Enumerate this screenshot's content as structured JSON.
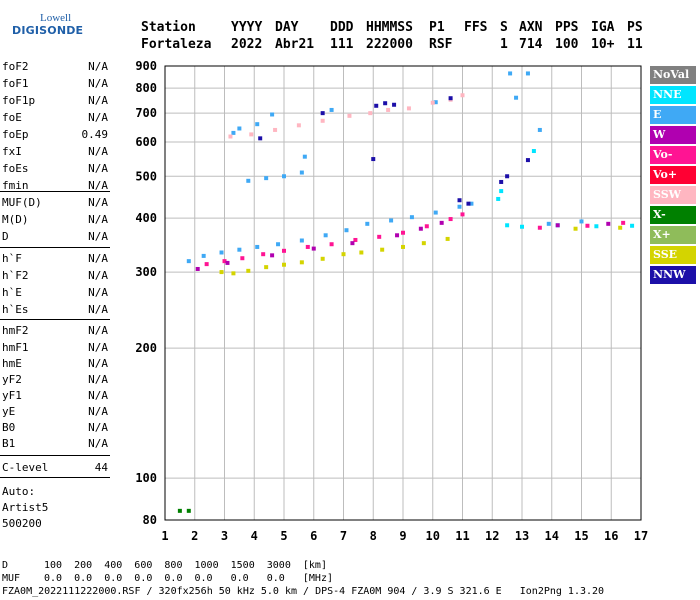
{
  "logo": {
    "line1": "Lowell",
    "line2": "DIGISONDE"
  },
  "header": {
    "labels": [
      "Station",
      "YYYY",
      "DAY",
      "DDD",
      "HHMMSS",
      "P1",
      "FFS",
      "S",
      "AXN",
      "PPS",
      "IGA",
      "PS"
    ],
    "values": [
      "Fortaleza",
      "2022",
      "Abr21",
      "111",
      "222000",
      "RSF",
      "",
      "1",
      "714",
      "100",
      "10+",
      "11"
    ]
  },
  "params": [
    {
      "name": "foF2",
      "value": "N/A"
    },
    {
      "name": "foF1",
      "value": "N/A"
    },
    {
      "name": "foF1p",
      "value": "N/A"
    },
    {
      "name": "foE",
      "value": "N/A"
    },
    {
      "name": "foEp",
      "value": "0.49"
    },
    {
      "name": "fxI",
      "value": "N/A"
    },
    {
      "name": "foEs",
      "value": "N/A"
    },
    {
      "name": "fmin",
      "value": "N/A"
    },
    {
      "name": "MUF(D)",
      "value": "N/A"
    },
    {
      "name": "M(D)",
      "value": "N/A"
    },
    {
      "name": "D",
      "value": "N/A"
    },
    {
      "name": "h`F",
      "value": "N/A"
    },
    {
      "name": "h`F2",
      "value": "N/A"
    },
    {
      "name": "h`E",
      "value": "N/A"
    },
    {
      "name": "h`Es",
      "value": "N/A"
    },
    {
      "name": "hmF2",
      "value": "N/A"
    },
    {
      "name": "hmF1",
      "value": "N/A"
    },
    {
      "name": "hmE",
      "value": "N/A"
    },
    {
      "name": "yF2",
      "value": "N/A"
    },
    {
      "name": "yF1",
      "value": "N/A"
    },
    {
      "name": "yE",
      "value": "N/A"
    },
    {
      "name": "B0",
      "value": "N/A"
    },
    {
      "name": "B1",
      "value": "N/A"
    },
    {
      "name": "C-level",
      "value": "44"
    }
  ],
  "auto": {
    "line1": "Auto:",
    "line2": "Artist5",
    "line3": "500200"
  },
  "legend": [
    {
      "label": "NoVal",
      "color": "#808080"
    },
    {
      "label": "NNE",
      "color": "#00e5ff"
    },
    {
      "label": "E",
      "color": "#3fa9f5"
    },
    {
      "label": "W",
      "color": "#b000b0"
    },
    {
      "label": "Vo-",
      "color": "#ff1493"
    },
    {
      "label": "Vo+",
      "color": "#ff0033"
    },
    {
      "label": "SSW",
      "color": "#ffb6c1"
    },
    {
      "label": "X-",
      "color": "#008000"
    },
    {
      "label": "X+",
      "color": "#8fbc5a"
    },
    {
      "label": "SSE",
      "color": "#d4d400"
    },
    {
      "label": "NNW",
      "color": "#1c0fa8"
    }
  ],
  "footer": {
    "d_label": "D",
    "d_values": "100  200  400  600  800  1000  1500  3000  [km]",
    "muf_label": "MUF",
    "muf_values": "0.0  0.0  0.0  0.0  0.0  0.0   0.0   0.0   [MHz]",
    "info_line": "FZA0M_2022111222000.RSF / 320fx256h 50 kHz 5.0 km / DPS-4 FZA0M 904 / 3.9 S 321.6 E   Ion2Png 1.3.20"
  },
  "chart_data": {
    "type": "scatter",
    "title": "",
    "xlabel": "",
    "ylabel": "",
    "xlim": [
      1,
      17
    ],
    "ylim": [
      80,
      900
    ],
    "y_scale": "log",
    "grid": true,
    "x_ticks": [
      1,
      2,
      3,
      4,
      5,
      6,
      7,
      8,
      9,
      10,
      11,
      12,
      13,
      14,
      15,
      16,
      17
    ],
    "y_ticks": [
      80,
      100,
      200,
      300,
      400,
      500,
      600,
      700,
      800,
      900
    ],
    "y_tick_labels": [
      "80",
      "100",
      "200",
      "300",
      "400",
      "500",
      "600",
      "700",
      "800",
      "900"
    ],
    "series": [
      {
        "name": "SSE",
        "points": [
          [
            2.9,
            300
          ],
          [
            3.3,
            298
          ],
          [
            3.8,
            302
          ],
          [
            4.4,
            308
          ],
          [
            5.0,
            312
          ],
          [
            5.6,
            316
          ],
          [
            6.3,
            322
          ],
          [
            7.0,
            330
          ],
          [
            7.6,
            333
          ],
          [
            8.3,
            338
          ],
          [
            9.0,
            343
          ],
          [
            9.7,
            350
          ],
          [
            10.5,
            358
          ],
          [
            14.8,
            378
          ],
          [
            16.3,
            380
          ]
        ]
      },
      {
        "name": "Vo-",
        "points": [
          [
            2.4,
            313
          ],
          [
            3.0,
            318
          ],
          [
            3.6,
            323
          ],
          [
            4.3,
            330
          ],
          [
            5.0,
            336
          ],
          [
            5.8,
            343
          ],
          [
            6.6,
            348
          ],
          [
            7.4,
            356
          ],
          [
            8.2,
            362
          ],
          [
            9.0,
            370
          ],
          [
            9.8,
            383
          ],
          [
            10.6,
            398
          ],
          [
            11.0,
            408
          ],
          [
            13.6,
            380
          ],
          [
            15.2,
            384
          ],
          [
            16.4,
            390
          ]
        ]
      },
      {
        "name": "E",
        "points": [
          [
            1.8,
            318
          ],
          [
            2.3,
            327
          ],
          [
            2.9,
            333
          ],
          [
            3.5,
            338
          ],
          [
            4.1,
            343
          ],
          [
            4.8,
            348
          ],
          [
            5.6,
            355
          ],
          [
            6.4,
            365
          ],
          [
            7.1,
            375
          ],
          [
            7.8,
            388
          ],
          [
            8.6,
            395
          ],
          [
            9.3,
            402
          ],
          [
            10.1,
            412
          ],
          [
            10.9,
            425
          ],
          [
            11.3,
            432
          ],
          [
            13.9,
            388
          ],
          [
            15.0,
            393
          ],
          [
            3.8,
            488
          ],
          [
            4.4,
            495
          ],
          [
            5.0,
            500
          ],
          [
            5.6,
            510
          ],
          [
            3.3,
            630
          ],
          [
            3.5,
            645
          ],
          [
            4.1,
            660
          ],
          [
            4.6,
            695
          ],
          [
            5.7,
            555
          ],
          [
            6.6,
            712
          ],
          [
            10.1,
            742
          ],
          [
            12.8,
            760
          ],
          [
            13.6,
            640
          ],
          [
            12.6,
            865
          ],
          [
            13.2,
            865
          ]
        ]
      },
      {
        "name": "SSW",
        "points": [
          [
            3.2,
            618
          ],
          [
            3.9,
            625
          ],
          [
            4.7,
            640
          ],
          [
            5.5,
            656
          ],
          [
            6.3,
            672
          ],
          [
            7.2,
            690
          ],
          [
            7.9,
            700
          ],
          [
            8.5,
            712
          ],
          [
            9.2,
            718
          ],
          [
            10.0,
            740
          ],
          [
            10.6,
            752
          ],
          [
            11.0,
            770
          ]
        ]
      },
      {
        "name": "NNW",
        "points": [
          [
            4.2,
            612
          ],
          [
            6.3,
            700
          ],
          [
            8.1,
            728
          ],
          [
            8.4,
            738
          ],
          [
            8.7,
            732
          ],
          [
            10.6,
            758
          ],
          [
            8.0,
            548
          ],
          [
            12.3,
            485
          ],
          [
            12.5,
            500
          ],
          [
            13.2,
            545
          ],
          [
            10.9,
            440
          ],
          [
            11.2,
            432
          ]
        ]
      },
      {
        "name": "NNE",
        "points": [
          [
            12.5,
            385
          ],
          [
            13.0,
            382
          ],
          [
            14.2,
            385
          ],
          [
            15.5,
            383
          ],
          [
            16.7,
            384
          ],
          [
            12.3,
            462
          ],
          [
            12.2,
            443
          ],
          [
            13.4,
            572
          ]
        ]
      },
      {
        "name": "W",
        "points": [
          [
            2.1,
            305
          ],
          [
            3.1,
            315
          ],
          [
            4.6,
            328
          ],
          [
            6.0,
            340
          ],
          [
            7.3,
            350
          ],
          [
            8.8,
            365
          ],
          [
            9.6,
            378
          ],
          [
            10.3,
            390
          ],
          [
            14.2,
            385
          ],
          [
            15.9,
            388
          ]
        ]
      },
      {
        "name": "X-",
        "points": [
          [
            1.5,
            84
          ],
          [
            1.8,
            84
          ]
        ]
      }
    ]
  }
}
